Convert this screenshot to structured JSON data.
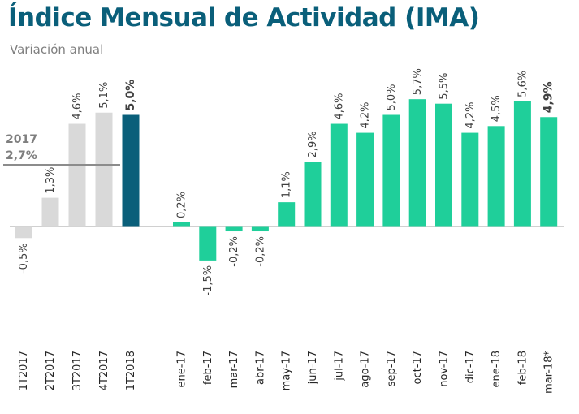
{
  "header": {
    "title": "Índice Mensual de Actividad (IMA)",
    "subtitle": "Variación anual"
  },
  "colors": {
    "title": "#0a5f7a",
    "quarter": "#d9d9d9",
    "latest_quarter": "#0a5f7a",
    "month": "#1fcf9a",
    "latest_month_label": "#1fcf9a",
    "annual_line": "#8c8c8c",
    "annual_text": "#7f7f7f"
  },
  "chart_data": {
    "type": "bar",
    "categories": [
      "1T2017",
      "2T2017",
      "3T2017",
      "4T2017",
      "1T2018",
      "ene-17",
      "feb-17",
      "mar-17",
      "abr-17",
      "may-17",
      "jun-17",
      "jul-17",
      "ago-17",
      "sep-17",
      "oct-17",
      "nov-17",
      "dic-17",
      "ene-18",
      "feb-18",
      "mar-18*"
    ],
    "values": [
      -0.5,
      1.3,
      4.6,
      5.1,
      5.0,
      0.2,
      -1.5,
      -0.2,
      -0.2,
      1.1,
      2.9,
      4.6,
      4.2,
      5.0,
      5.7,
      5.5,
      4.2,
      4.5,
      5.6,
      4.9
    ],
    "value_labels": [
      "-0,5%",
      "1,3%",
      "4,6%",
      "5,1%",
      "5,0%",
      "0,2%",
      "-1,5%",
      "-0,2%",
      "-0,2%",
      "1,1%",
      "2,9%",
      "4,6%",
      "4,2%",
      "5,0%",
      "5,7%",
      "5,5%",
      "4,2%",
      "4,5%",
      "5,6%",
      "4,9%"
    ],
    "groups": [
      "quarter",
      "quarter",
      "quarter",
      "quarter",
      "quarter_latest",
      "month",
      "month",
      "month",
      "month",
      "month",
      "month",
      "month",
      "month",
      "month",
      "month",
      "month",
      "month",
      "month",
      "month",
      "month_latest"
    ],
    "annual_reference": {
      "year_label": "2017",
      "value": 2.7,
      "value_label": "2,7%"
    },
    "ylim": [
      -1.5,
      5.7
    ]
  }
}
